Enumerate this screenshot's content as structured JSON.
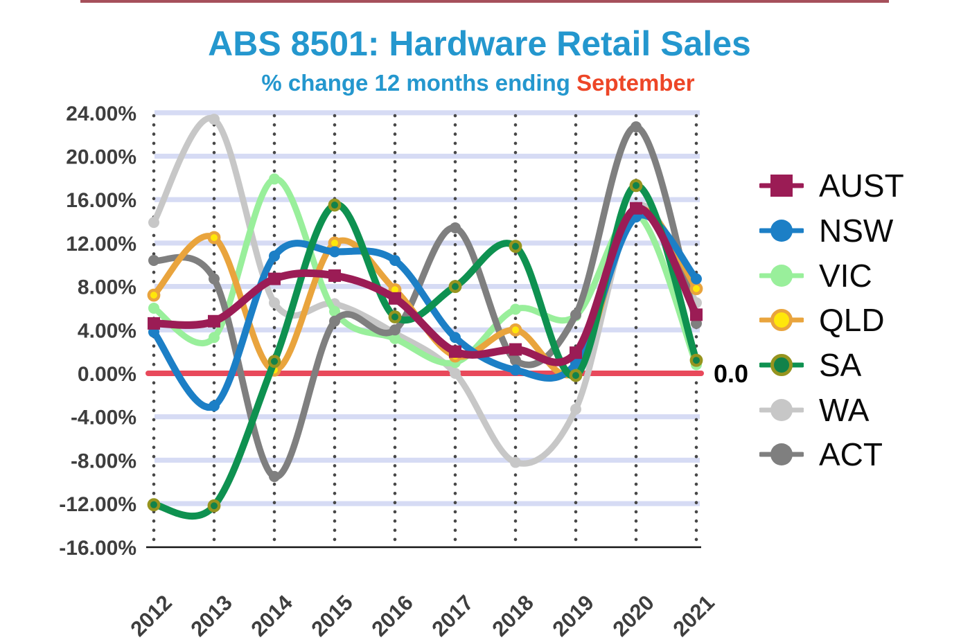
{
  "page": {
    "top_rule_color": "#A6505B"
  },
  "title": {
    "text": "ABS 8501: Hardware Retail Sales",
    "color": "#2497CE"
  },
  "subtitle": {
    "prefix": "% change 12 months ending ",
    "highlight": "September",
    "prefix_color": "#2497CE",
    "highlight_color": "#ED4627"
  },
  "zero_label": "0.0",
  "chart_data": {
    "type": "line",
    "title": "ABS 8501: Hardware Retail Sales",
    "subtitle": "% change 12 months ending September",
    "x": [
      2012,
      2013,
      2014,
      2015,
      2016,
      2017,
      2018,
      2019,
      2020,
      2021
    ],
    "xtick_labels": [
      "2012",
      "2013",
      "2014",
      "2015",
      "2016",
      "2017",
      "2018",
      "2019",
      "2020",
      "2021"
    ],
    "ylim": [
      -16,
      24
    ],
    "ytick_step": 4,
    "ytick_labels": [
      "24.00%",
      "20.00%",
      "16.00%",
      "12.00%",
      "8.00%",
      "4.00%",
      "0.00%",
      "-4.00%",
      "-8.00%",
      "-12.00%",
      "-16.00%"
    ],
    "grid": {
      "h_band_color": "#D6DBF4",
      "v_dotted_color": "#474747"
    },
    "zero_line": {
      "value": 0.0,
      "color": "#E8495B",
      "label": "0.0"
    },
    "legend_position": "right",
    "series": [
      {
        "name": "AUST",
        "color": "#9B1C55",
        "marker": "square",
        "z": 6,
        "width": 11,
        "values": [
          4.6,
          4.8,
          8.7,
          9.0,
          6.9,
          2.0,
          2.2,
          1.9,
          15.2,
          5.4
        ]
      },
      {
        "name": "NSW",
        "color": "#1C7FC6",
        "marker": "circle",
        "z": 4,
        "width": 10,
        "values": [
          3.8,
          -3.0,
          10.8,
          11.2,
          10.4,
          3.3,
          0.3,
          0.9,
          14.4,
          8.7
        ]
      },
      {
        "name": "VIC",
        "color": "#99EF9B",
        "marker": "circle",
        "z": 1,
        "width": 9,
        "values": [
          6.0,
          3.3,
          17.9,
          5.7,
          3.2,
          1.0,
          5.9,
          5.3,
          14.7,
          0.8
        ]
      },
      {
        "name": "QLD",
        "color": "#E9A43D",
        "marker": "circle",
        "marker_fill": "#FFE70A",
        "marker_stroke": "#E9A43D",
        "z": 3,
        "width": 9,
        "values": [
          7.2,
          12.5,
          0.3,
          12.0,
          7.7,
          1.6,
          4.0,
          0.2,
          15.0,
          7.8
        ]
      },
      {
        "name": "SA",
        "color": "#0E9150",
        "marker": "circle",
        "marker_fill": "#12824A",
        "marker_stroke": "#96941F",
        "z": 5,
        "width": 10,
        "values": [
          -12.1,
          -12.2,
          1.1,
          15.5,
          5.2,
          8.0,
          11.7,
          -0.2,
          17.3,
          1.2
        ]
      },
      {
        "name": "WA",
        "color": "#C7C7C7",
        "marker": "circle",
        "z": 0,
        "width": 9,
        "values": [
          13.9,
          23.4,
          6.5,
          6.4,
          3.7,
          0.0,
          -8.2,
          -3.3,
          15.3,
          6.5
        ]
      },
      {
        "name": "ACT",
        "color": "#7F7F7F",
        "marker": "circle",
        "z": 2,
        "width": 9.5,
        "values": [
          10.4,
          8.7,
          -9.5,
          4.8,
          4.0,
          13.4,
          1.2,
          5.4,
          22.7,
          4.6
        ]
      }
    ]
  }
}
